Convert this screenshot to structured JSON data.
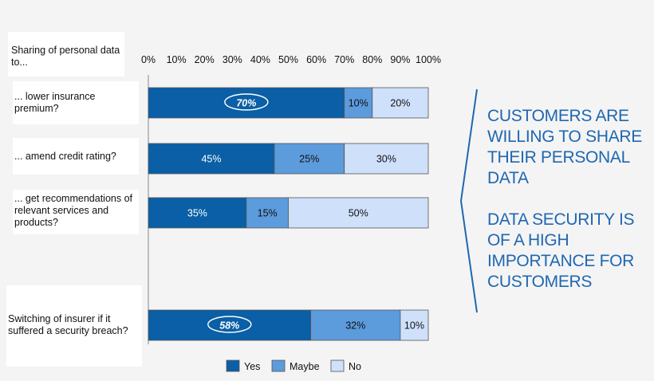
{
  "chart_data": {
    "type": "bar",
    "orientation": "horizontal",
    "stacked": true,
    "header_label": "Sharing of personal data to...",
    "categories": [
      "... lower insurance premium?",
      "... amend credit rating?",
      "... get recommendations of relevant services and products?",
      "Switching  of insurer if it suffered a security breach?"
    ],
    "series": [
      {
        "name": "Yes",
        "values": [
          70,
          45,
          35,
          58
        ],
        "color": "#0a5fa6"
      },
      {
        "name": "Maybe",
        "values": [
          10,
          25,
          15,
          32
        ],
        "color": "#5c9bdc"
      },
      {
        "name": "No",
        "values": [
          20,
          30,
          50,
          10
        ],
        "color": "#cfe0fb"
      }
    ],
    "highlighted_yes": [
      0,
      3
    ],
    "x_ticks": [
      "0%",
      "10%",
      "20%",
      "30%",
      "40%",
      "50%",
      "60%",
      "70%",
      "80%",
      "90%",
      "100%"
    ],
    "xlim": [
      0,
      100
    ],
    "grid": false,
    "legend": "bottom"
  },
  "callout": {
    "line1": "CUSTOMERS ARE WILLING TO SHARE THEIR PERSONAL DATA",
    "line2": "DATA SECURITY IS OF A HIGH IMPORTANCE FOR CUSTOMERS"
  }
}
